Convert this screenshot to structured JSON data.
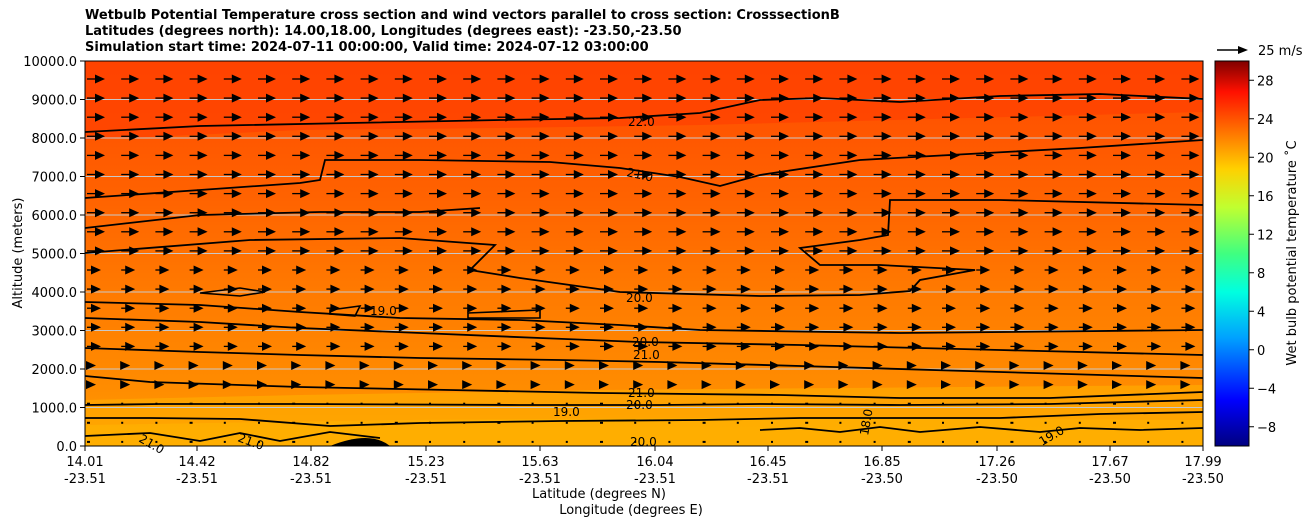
{
  "chart_data": {
    "type": "contour",
    "title_lines": [
      "Wetbulb Potential Temperature cross section and wind vectors parallel to cross section: CrosssectionB",
      "Latitudes (degrees north): 14.00,18.00, Longitudes (degrees east): -23.50,-23.50",
      "Simulation start time: 2024-07-11 00:00:00, Valid time: 2024-07-12 03:00:00"
    ],
    "ylabel": "Altitude (meters)",
    "xlabel_1": "Latitude (degrees N)",
    "xlabel_2": "Longitude (degrees E)",
    "ylim": [
      0,
      10000
    ],
    "yticks": [
      "0.0",
      "1000.0",
      "2000.0",
      "3000.0",
      "4000.0",
      "5000.0",
      "6000.0",
      "7000.0",
      "8000.0",
      "9000.0",
      "10000.0"
    ],
    "xticks": [
      {
        "lat": "14.01",
        "lon": "-23.51"
      },
      {
        "lat": "14.42",
        "lon": "-23.51"
      },
      {
        "lat": "14.82",
        "lon": "-23.51"
      },
      {
        "lat": "15.23",
        "lon": "-23.51"
      },
      {
        "lat": "15.63",
        "lon": "-23.51"
      },
      {
        "lat": "16.04",
        "lon": "-23.51"
      },
      {
        "lat": "16.45",
        "lon": "-23.51"
      },
      {
        "lat": "16.85",
        "lon": "-23.50"
      },
      {
        "lat": "17.26",
        "lon": "-23.50"
      },
      {
        "lat": "17.67",
        "lon": "-23.50"
      },
      {
        "lat": "17.99",
        "lon": "-23.50"
      }
    ],
    "grid": "horizontal",
    "colorbar": {
      "label": "Wet bulb potential temperature ˚C",
      "ticks": [
        "−8",
        "−4",
        "0",
        "4",
        "8",
        "12",
        "16",
        "20",
        "24",
        "28"
      ],
      "range": [
        -10,
        30
      ]
    },
    "quiver_key": "25 m/s",
    "contour_labels": [
      "22.0",
      "21.0",
      "20.0",
      "19.0",
      "18.0"
    ],
    "contour_levels": [
      18,
      19,
      20,
      21,
      22
    ],
    "colors": {
      "upper": "#ff4d00",
      "mid": "#ff6a00",
      "low": "#ff8c00",
      "surface": "#ffa500"
    }
  }
}
